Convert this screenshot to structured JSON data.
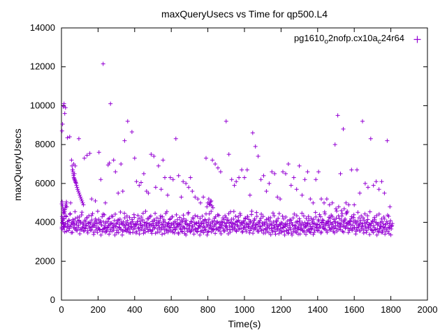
{
  "legend_parts": [
    "pg1610",
    "o",
    "2nofp.cx10a",
    "c",
    "24r64"
  ],
  "chart_data": {
    "type": "scatter",
    "title": "maxQueryUsecs vs Time for qp500.L4",
    "xlabel": "Time(s)",
    "ylabel": "maxQueryUsecs",
    "xlim": [
      0,
      2000
    ],
    "ylim": [
      0,
      14000
    ],
    "x_ticks": [
      0,
      200,
      400,
      600,
      800,
      1000,
      1200,
      1400,
      1600,
      1800,
      2000
    ],
    "y_ticks": [
      0,
      2000,
      4000,
      6000,
      8000,
      10000,
      12000,
      14000
    ],
    "grid": false,
    "legend_position": "top-right-inside",
    "series_name": "pg1610_o2nofp.cx10a_c24r64",
    "marker": "plus",
    "color": "#9400d3",
    "points": [
      [
        2,
        4950
      ],
      [
        4,
        5050
      ],
      [
        6,
        4850
      ],
      [
        8,
        4700
      ],
      [
        10,
        4600
      ],
      [
        12,
        4500
      ],
      [
        3,
        4300
      ],
      [
        5,
        4200
      ],
      [
        7,
        4100
      ],
      [
        9,
        4000
      ],
      [
        11,
        3900
      ],
      [
        13,
        3800
      ],
      [
        2,
        3750
      ],
      [
        15,
        4450
      ],
      [
        17,
        4550
      ],
      [
        19,
        4650
      ],
      [
        21,
        4750
      ],
      [
        23,
        4850
      ],
      [
        25,
        4950
      ],
      [
        27,
        5050
      ],
      [
        29,
        4800
      ],
      [
        3,
        8700
      ],
      [
        6,
        9050
      ],
      [
        10,
        9950
      ],
      [
        14,
        10100
      ],
      [
        18,
        9600
      ],
      [
        22,
        9900
      ],
      [
        33,
        8350
      ],
      [
        45,
        8400
      ],
      [
        95,
        8300
      ],
      [
        50,
        5000
      ],
      [
        55,
        7200
      ],
      [
        58,
        6900
      ],
      [
        62,
        6700
      ],
      [
        64,
        6500
      ],
      [
        66,
        6400
      ],
      [
        68,
        6300
      ],
      [
        70,
        6250
      ],
      [
        72,
        6200
      ],
      [
        74,
        6150
      ],
      [
        76,
        6100
      ],
      [
        78,
        6050
      ],
      [
        80,
        6000
      ],
      [
        82,
        5900
      ],
      [
        85,
        5800
      ],
      [
        88,
        5700
      ],
      [
        92,
        5600
      ],
      [
        96,
        5500
      ],
      [
        100,
        5400
      ],
      [
        104,
        5300
      ],
      [
        108,
        5200
      ],
      [
        112,
        5100
      ],
      [
        116,
        5000
      ],
      [
        120,
        4900
      ],
      [
        60,
        6700
      ],
      [
        63,
        6600
      ],
      [
        67,
        7000
      ],
      [
        71,
        6500
      ],
      [
        75,
        6900
      ],
      [
        125,
        7300
      ],
      [
        140,
        7450
      ],
      [
        155,
        7550
      ],
      [
        165,
        5200
      ],
      [
        185,
        5100
      ],
      [
        205,
        7600
      ],
      [
        215,
        6200
      ],
      [
        228,
        12150
      ],
      [
        240,
        5000
      ],
      [
        255,
        6950
      ],
      [
        262,
        7050
      ],
      [
        268,
        10100
      ],
      [
        285,
        7200
      ],
      [
        295,
        6600
      ],
      [
        310,
        5500
      ],
      [
        325,
        7000
      ],
      [
        335,
        5600
      ],
      [
        345,
        8200
      ],
      [
        362,
        9200
      ],
      [
        385,
        8650
      ],
      [
        400,
        7300
      ],
      [
        410,
        6100
      ],
      [
        425,
        5900
      ],
      [
        435,
        6050
      ],
      [
        450,
        6500
      ],
      [
        465,
        5600
      ],
      [
        475,
        5500
      ],
      [
        490,
        7500
      ],
      [
        505,
        7400
      ],
      [
        515,
        5800
      ],
      [
        530,
        6900
      ],
      [
        545,
        5700
      ],
      [
        555,
        7200
      ],
      [
        565,
        6300
      ],
      [
        580,
        5400
      ],
      [
        595,
        6300
      ],
      [
        610,
        6200
      ],
      [
        625,
        8300
      ],
      [
        640,
        6400
      ],
      [
        655,
        5300
      ],
      [
        665,
        6100
      ],
      [
        680,
        6000
      ],
      [
        695,
        5800
      ],
      [
        705,
        6300
      ],
      [
        715,
        5600
      ],
      [
        730,
        5300
      ],
      [
        745,
        5200
      ],
      [
        760,
        5000
      ],
      [
        775,
        5300
      ],
      [
        790,
        7300
      ],
      [
        800,
        5000
      ],
      [
        805,
        5200
      ],
      [
        812,
        4900
      ],
      [
        818,
        5100
      ],
      [
        825,
        7200
      ],
      [
        840,
        7000
      ],
      [
        855,
        6800
      ],
      [
        870,
        6600
      ],
      [
        900,
        9200
      ],
      [
        915,
        7500
      ],
      [
        930,
        6200
      ],
      [
        945,
        5900
      ],
      [
        955,
        6100
      ],
      [
        970,
        6300
      ],
      [
        985,
        6700
      ],
      [
        1000,
        6300
      ],
      [
        1015,
        6700
      ],
      [
        1030,
        5400
      ],
      [
        1045,
        8600
      ],
      [
        1060,
        7900
      ],
      [
        1075,
        7400
      ],
      [
        1090,
        6200
      ],
      [
        1105,
        6400
      ],
      [
        1120,
        5600
      ],
      [
        1135,
        6000
      ],
      [
        1150,
        6600
      ],
      [
        1165,
        6500
      ],
      [
        1180,
        5300
      ],
      [
        1195,
        5200
      ],
      [
        1210,
        6600
      ],
      [
        1225,
        6500
      ],
      [
        1240,
        7000
      ],
      [
        1255,
        5900
      ],
      [
        1270,
        6300
      ],
      [
        1285,
        5700
      ],
      [
        1300,
        6900
      ],
      [
        1315,
        5400
      ],
      [
        1330,
        6200
      ],
      [
        1345,
        6600
      ],
      [
        1360,
        5200
      ],
      [
        1375,
        5000
      ],
      [
        1390,
        6200
      ],
      [
        1405,
        6600
      ],
      [
        1420,
        5200
      ],
      [
        1435,
        5000
      ],
      [
        1450,
        5200
      ],
      [
        1465,
        4900
      ],
      [
        1480,
        5000
      ],
      [
        1495,
        8000
      ],
      [
        1510,
        9500
      ],
      [
        1525,
        6500
      ],
      [
        1540,
        8800
      ],
      [
        1555,
        5000
      ],
      [
        1570,
        4900
      ],
      [
        1585,
        6700
      ],
      [
        1600,
        4900
      ],
      [
        1615,
        6700
      ],
      [
        1630,
        5500
      ],
      [
        1645,
        9200
      ],
      [
        1660,
        6000
      ],
      [
        1675,
        5800
      ],
      [
        1690,
        8300
      ],
      [
        1705,
        5900
      ],
      [
        1720,
        6100
      ],
      [
        1735,
        5700
      ],
      [
        1750,
        6100
      ],
      [
        1765,
        5500
      ],
      [
        1780,
        8200
      ],
      [
        1795,
        4800
      ],
      [
        795,
        4800
      ],
      [
        808,
        4950
      ],
      [
        815,
        5050
      ],
      [
        822,
        4850
      ],
      [
        828,
        4750
      ],
      [
        1500,
        4700
      ],
      [
        1515,
        4800
      ],
      [
        1530,
        4600
      ],
      [
        1545,
        4700
      ],
      [
        1560,
        4500
      ]
    ],
    "bands": [
      {
        "x_start": 2,
        "x_end": 1808,
        "x_step": 4,
        "base": 3850,
        "min": 3350,
        "wave_amp": 60,
        "wave_period": 700,
        "phase": 0,
        "offsets": [
          -180,
          140,
          -60,
          320,
          -350,
          70,
          430,
          -130,
          40,
          -290,
          210,
          540,
          -90,
          -410,
          110,
          260,
          -160,
          20,
          660,
          -230,
          80,
          -310,
          170,
          -40,
          380,
          -260,
          120,
          480,
          -200,
          60,
          -360
        ]
      },
      {
        "x_start": 4,
        "x_end": 1810,
        "x_step": 4,
        "base": 3800,
        "min": 3350,
        "wave_amp": 80,
        "wave_period": 500,
        "phase": 1.5,
        "offsets": [
          90,
          -240,
          310,
          -120,
          30,
          450,
          -330,
          160,
          -70,
          240,
          -180,
          580,
          -20,
          120,
          -380,
          60,
          200,
          -140,
          340,
          -260,
          10,
          420,
          -100,
          270,
          -420,
          140,
          -200,
          700,
          -50
        ]
      }
    ]
  }
}
